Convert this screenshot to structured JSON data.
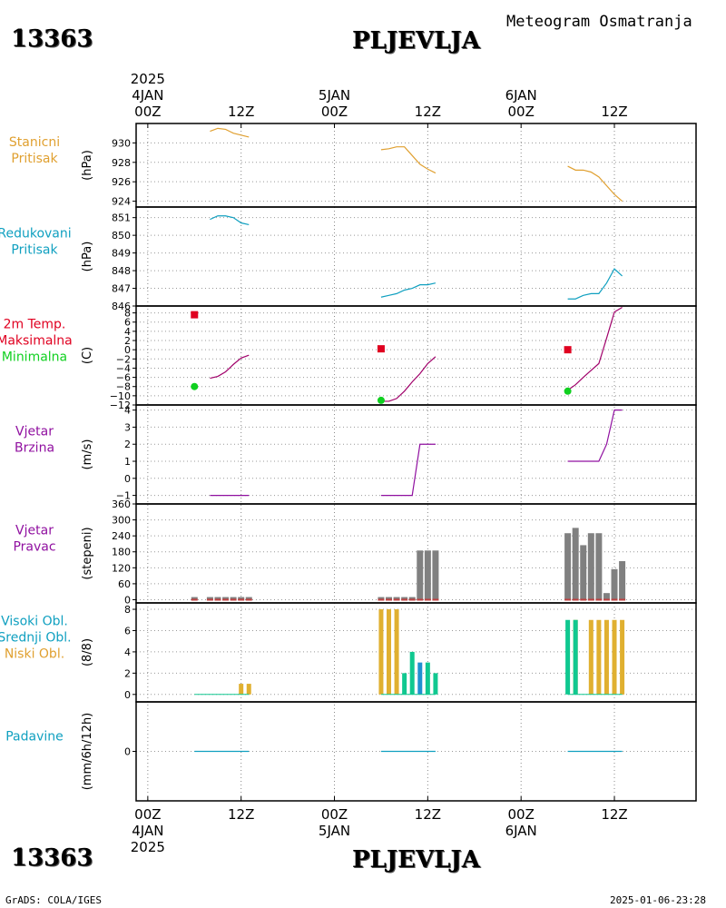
{
  "header": {
    "station_id": "13363",
    "station_name": "PLJEVLJA",
    "product": "Meteogram Osmatranja"
  },
  "footer": {
    "credit": "GrADS: COLA/IGES",
    "timestamp": "2025-01-06-23:28"
  },
  "time_axis": {
    "year": "2025",
    "ticks": [
      {
        "hour": 0,
        "label": "00Z",
        "date": "4JAN"
      },
      {
        "hour": 12,
        "label": "12Z",
        "date": ""
      },
      {
        "hour": 24,
        "label": "00Z",
        "date": "5JAN"
      },
      {
        "hour": 36,
        "label": "12Z",
        "date": ""
      },
      {
        "hour": 48,
        "label": "00Z",
        "date": "6JAN"
      },
      {
        "hour": 60,
        "label": "12Z",
        "date": ""
      }
    ],
    "range_hours": [
      -1.5,
      70.5
    ]
  },
  "colors": {
    "station_pressure": "#e0a030",
    "reduced_pressure": "#10a0c0",
    "tmax": "#e00020",
    "tmin": "#10d020",
    "temperature": "#a0006a",
    "wind": "#9010a0",
    "wind_dir_bar": "#808080",
    "wind_dir_base": "#c04040",
    "cloud_high": "#2090d0",
    "cloud_mid": "#10c890",
    "cloud_low": "#e0b030",
    "precip": "#10a0c0"
  },
  "chart_data": [
    {
      "id": "station_pressure",
      "type": "line",
      "labels": [
        "Stanicni",
        "Pritisak"
      ],
      "label_color": "#e0a030",
      "unit": "(hPa)",
      "ylim": [
        923.4,
        932.0
      ],
      "yticks": [
        924,
        926,
        928,
        930
      ],
      "segments": [
        {
          "x": [
            8,
            9,
            10,
            11,
            12,
            13
          ],
          "y": [
            931.2,
            931.5,
            931.4,
            931.0,
            930.8,
            930.6
          ]
        },
        {
          "x": [
            30,
            31,
            32,
            33,
            34,
            35,
            36,
            37
          ],
          "y": [
            929.3,
            929.4,
            929.6,
            929.6,
            928.7,
            927.8,
            927.3,
            926.9
          ]
        },
        {
          "x": [
            54,
            55,
            56,
            57,
            58,
            59,
            60,
            61
          ],
          "y": [
            927.6,
            927.2,
            927.2,
            927.0,
            926.5,
            925.6,
            924.7,
            924.0
          ]
        }
      ]
    },
    {
      "id": "reduced_pressure",
      "type": "line",
      "labels": [
        "Redukovani",
        "Pritisak"
      ],
      "label_color": "#10a0c0",
      "unit": "(hPa)",
      "ylim": [
        846.0,
        851.6
      ],
      "yticks": [
        846,
        847,
        848,
        849,
        850,
        851
      ],
      "segments": [
        {
          "x": [
            8,
            9,
            10,
            11,
            12,
            13
          ],
          "y": [
            850.9,
            851.1,
            851.1,
            851.0,
            850.7,
            850.6
          ]
        },
        {
          "x": [
            30,
            31,
            32,
            33,
            34,
            35,
            36,
            37
          ],
          "y": [
            846.5,
            846.6,
            846.7,
            846.9,
            847.0,
            847.2,
            847.2,
            847.3
          ]
        },
        {
          "x": [
            54,
            55,
            56,
            57,
            58,
            59,
            60,
            61
          ],
          "y": [
            846.4,
            846.4,
            846.6,
            846.7,
            846.7,
            847.3,
            848.1,
            847.7
          ]
        }
      ]
    },
    {
      "id": "temperature",
      "type": "line",
      "labels": [
        "2m Temp.",
        "Maksimalna",
        "Minimalna"
      ],
      "label_colors": [
        "#e00020",
        "#e00020",
        "#10d020"
      ],
      "unit": "(C)",
      "ylim": [
        -12,
        9.5
      ],
      "yticks": [
        -12,
        -10,
        -8,
        -6,
        -4,
        -2,
        0,
        2,
        4,
        6,
        8
      ],
      "segments": [
        {
          "x": [
            8,
            9,
            10,
            11,
            12,
            13
          ],
          "y": [
            -6.2,
            -5.8,
            -4.8,
            -3.2,
            -1.8,
            -1.2
          ]
        },
        {
          "x": [
            30,
            31,
            32,
            33,
            34,
            35,
            36,
            37
          ],
          "y": [
            -11.2,
            -11.2,
            -10.6,
            -9.0,
            -7.0,
            -5.2,
            -3.0,
            -1.5
          ]
        },
        {
          "x": [
            54,
            55,
            56,
            57,
            58,
            59,
            60,
            61
          ],
          "y": [
            -8.8,
            -7.6,
            -6.0,
            -4.5,
            -3.0,
            2.5,
            8.2,
            9.2
          ]
        }
      ],
      "tmax": [
        {
          "x": 6,
          "y": 7.6
        },
        {
          "x": 30,
          "y": 0.2
        },
        {
          "x": 54,
          "y": 0.0
        }
      ],
      "tmin": [
        {
          "x": 6,
          "y": -8.0
        },
        {
          "x": 30,
          "y": -11.0
        },
        {
          "x": 54,
          "y": -9.0
        }
      ]
    },
    {
      "id": "wind_speed",
      "type": "line",
      "labels": [
        "Vjetar",
        "Brzina"
      ],
      "label_color": "#9010a0",
      "unit": "(m/s)",
      "ylim": [
        -1.5,
        4.3
      ],
      "yticks": [
        -1,
        0,
        1,
        2,
        3,
        4
      ],
      "segments": [
        {
          "x": [
            8,
            9,
            10,
            11,
            12,
            13
          ],
          "y": [
            -1,
            -1,
            -1,
            -1,
            -1,
            -1
          ]
        },
        {
          "x": [
            30,
            31,
            32,
            33,
            34,
            35,
            36,
            37
          ],
          "y": [
            -1,
            -1,
            -1,
            -1,
            -1,
            2,
            2,
            2
          ]
        },
        {
          "x": [
            54,
            55,
            56,
            57,
            58,
            59,
            60,
            61
          ],
          "y": [
            1,
            1,
            1,
            1,
            1,
            2,
            4,
            4
          ]
        }
      ]
    },
    {
      "id": "wind_direction",
      "type": "bar",
      "labels": [
        "Vjetar",
        "Pravac"
      ],
      "label_color": "#9010a0",
      "unit": "(stepeni)",
      "ylim": [
        -12,
        360
      ],
      "yticks": [
        0,
        60,
        120,
        180,
        240,
        300,
        360
      ],
      "yticklabels": [
        "0",
        "60",
        "120",
        "180",
        "240",
        "300",
        "360"
      ],
      "bars": [
        {
          "x": 6,
          "y": 10
        },
        {
          "x": 8,
          "y": 10
        },
        {
          "x": 9,
          "y": 10
        },
        {
          "x": 10,
          "y": 10
        },
        {
          "x": 11,
          "y": 10
        },
        {
          "x": 12,
          "y": 10
        },
        {
          "x": 13,
          "y": 10
        },
        {
          "x": 30,
          "y": 10
        },
        {
          "x": 31,
          "y": 10
        },
        {
          "x": 32,
          "y": 10
        },
        {
          "x": 33,
          "y": 10
        },
        {
          "x": 34,
          "y": 10
        },
        {
          "x": 35,
          "y": 185
        },
        {
          "x": 36,
          "y": 185
        },
        {
          "x": 37,
          "y": 185
        },
        {
          "x": 54,
          "y": 250
        },
        {
          "x": 55,
          "y": 270
        },
        {
          "x": 56,
          "y": 205
        },
        {
          "x": 57,
          "y": 250
        },
        {
          "x": 58,
          "y": 250
        },
        {
          "x": 59,
          "y": 25
        },
        {
          "x": 60,
          "y": 115
        },
        {
          "x": 61,
          "y": 145
        }
      ]
    },
    {
      "id": "cloud_cover",
      "type": "bar",
      "labels": [
        "Visoki Obl.",
        "Srednji Obl.",
        "Niski Obl."
      ],
      "label_colors": [
        "#10a0c0",
        "#10a0c0",
        "#e0a030"
      ],
      "unit": "(8/8)",
      "ylim": [
        -0.7,
        8.6
      ],
      "yticks": [
        0,
        2,
        4,
        6,
        8
      ],
      "series": [
        {
          "name": "Niski Obl.",
          "bars": [
            {
              "x": 12,
              "y": 1
            },
            {
              "x": 13,
              "y": 1
            },
            {
              "x": 30,
              "y": 8
            },
            {
              "x": 31,
              "y": 8
            },
            {
              "x": 32,
              "y": 8
            },
            {
              "x": 55,
              "y": 7
            },
            {
              "x": 57,
              "y": 7
            },
            {
              "x": 58,
              "y": 7
            },
            {
              "x": 59,
              "y": 7
            },
            {
              "x": 60,
              "y": 7
            },
            {
              "x": 61,
              "y": 7
            }
          ]
        },
        {
          "name": "Srednji Obl.",
          "bars": [
            {
              "x": 33,
              "y": 2
            },
            {
              "x": 34,
              "y": 4
            },
            {
              "x": 36,
              "y": 3
            },
            {
              "x": 37,
              "y": 2
            },
            {
              "x": 54,
              "y": 7
            },
            {
              "x": 55,
              "y": 7
            }
          ]
        },
        {
          "name": "Visoki Obl.",
          "bars": [
            {
              "x": 35,
              "y": 3
            }
          ]
        }
      ]
    },
    {
      "id": "precipitation",
      "type": "line",
      "labels": [
        "Padavine"
      ],
      "label_color": "#10a0c0",
      "unit": "(mm/6h/12h)",
      "ylim": [
        -5,
        5
      ],
      "yticks": [
        0
      ],
      "segments": [
        {
          "x": [
            6,
            8,
            10,
            12,
            13
          ],
          "y": [
            0,
            0,
            0,
            0,
            0
          ]
        },
        {
          "x": [
            30,
            32,
            34,
            36,
            37
          ],
          "y": [
            0,
            0,
            0,
            0,
            0
          ]
        },
        {
          "x": [
            54,
            56,
            58,
            60,
            61
          ],
          "y": [
            0,
            0,
            0,
            0,
            0
          ]
        }
      ]
    }
  ]
}
